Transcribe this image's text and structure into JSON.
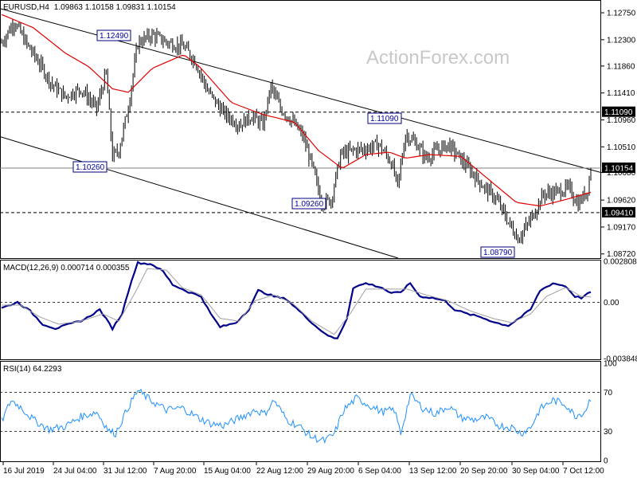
{
  "header": {
    "symbol": "EURUSD,H4",
    "ohlc": "1.09863 1.10158 1.09831 1.10154",
    "macd": "MACD(12,26,9) 0.000714 0.000355",
    "rsi": "RSI(14) 64.2293"
  },
  "watermark": "ActionForex.com",
  "colors": {
    "bars": "#000000",
    "ma": "#e00000",
    "macd_line": "#00008b",
    "signal": "#a0a0a0",
    "rsi": "#1e90ff",
    "channel": "#000000",
    "level_box_text": "#0000a0",
    "current_price_box": "#000000",
    "grid": "#ffffff"
  },
  "chart_data": [
    {
      "type": "candlestick",
      "title": "EURUSD,H4",
      "ylim": [
        1.0865,
        1.1295
      ],
      "y_ticks": [
        "1.12750",
        "1.12300",
        "1.11860",
        "1.11410",
        "1.10960",
        "1.10510",
        "1.10080",
        "1.09620",
        "1.09170",
        "1.08720"
      ],
      "y_tick_values": [
        1.1275,
        1.123,
        1.1186,
        1.1141,
        1.1096,
        1.1051,
        1.1008,
        1.0962,
        1.0917,
        1.0872
      ],
      "x_ticks": [
        "16 Jul 2019",
        "24 Jul 04:00",
        "31 Jul 12:00",
        "7 Aug 20:00",
        "15 Aug 04:00",
        "22 Aug 12:00",
        "29 Aug 20:00",
        "6 Sep 04:00",
        "13 Sep 12:00",
        "20 Sep 20:00",
        "30 Sep 04:00",
        "7 Oct 12:00"
      ],
      "levels": [
        {
          "value": 1.1109,
          "label": "1.11090",
          "style": "dashed"
        },
        {
          "value": 1.0941,
          "label": "1.09410",
          "style": "dashed"
        },
        {
          "value": 1.10154,
          "label": "1.10154",
          "style": "solid"
        }
      ],
      "annotations": [
        {
          "label": "1.12490",
          "value": 1.1249
        },
        {
          "label": "1.10260",
          "value": 1.1026
        },
        {
          "label": "1.09260",
          "value": 1.0926
        },
        {
          "label": "1.11090",
          "value": 1.1109
        },
        {
          "label": "1.08790",
          "value": 1.0879
        }
      ],
      "close_anchors": [
        [
          0,
          1.1225
        ],
        [
          8,
          1.126
        ],
        [
          16,
          1.1222
        ],
        [
          24,
          1.119
        ],
        [
          32,
          1.1155
        ],
        [
          40,
          1.1135
        ],
        [
          50,
          1.1148
        ],
        [
          60,
          1.1115
        ],
        [
          66,
          1.1175
        ],
        [
          70,
          1.1035
        ],
        [
          74,
          1.1045
        ],
        [
          80,
          1.1118
        ],
        [
          86,
          1.1225
        ],
        [
          95,
          1.1238
        ],
        [
          105,
          1.1225
        ],
        [
          115,
          1.1218
        ],
        [
          122,
          1.1195
        ],
        [
          130,
          1.1145
        ],
        [
          140,
          1.1108
        ],
        [
          150,
          1.1088
        ],
        [
          158,
          1.1102
        ],
        [
          165,
          1.1088
        ],
        [
          170,
          1.1152
        ],
        [
          176,
          1.1115
        ],
        [
          183,
          1.1095
        ],
        [
          190,
          1.107
        ],
        [
          196,
          1.102
        ],
        [
          202,
          1.0958
        ],
        [
          208,
          1.0962
        ],
        [
          214,
          1.1038
        ],
        [
          222,
          1.1045
        ],
        [
          230,
          1.1048
        ],
        [
          238,
          1.1055
        ],
        [
          246,
          1.1025
        ],
        [
          250,
          1.0985
        ],
        [
          255,
          1.1072
        ],
        [
          262,
          1.1055
        ],
        [
          268,
          1.1032
        ],
        [
          275,
          1.1045
        ],
        [
          282,
          1.1055
        ],
        [
          290,
          1.103
        ],
        [
          298,
          1.1005
        ],
        [
          305,
          1.0982
        ],
        [
          312,
          1.0965
        ],
        [
          320,
          1.0925
        ],
        [
          326,
          1.0898
        ],
        [
          332,
          1.092
        ],
        [
          336,
          1.094
        ],
        [
          342,
          1.0972
        ],
        [
          350,
          1.0975
        ],
        [
          358,
          1.0982
        ],
        [
          364,
          1.0955
        ],
        [
          370,
          1.098
        ],
        [
          372,
          1.10154
        ]
      ],
      "ma_anchors": [
        [
          0,
          1.1272
        ],
        [
          20,
          1.125
        ],
        [
          40,
          1.1208
        ],
        [
          55,
          1.1185
        ],
        [
          70,
          1.1148
        ],
        [
          80,
          1.1142
        ],
        [
          95,
          1.1182
        ],
        [
          115,
          1.1205
        ],
        [
          125,
          1.1185
        ],
        [
          145,
          1.1125
        ],
        [
          165,
          1.1105
        ],
        [
          185,
          1.1092
        ],
        [
          200,
          1.1045
        ],
        [
          215,
          1.1015
        ],
        [
          230,
          1.1038
        ],
        [
          245,
          1.1042
        ],
        [
          255,
          1.1032
        ],
        [
          270,
          1.1038
        ],
        [
          290,
          1.1035
        ],
        [
          305,
          1.1002
        ],
        [
          325,
          1.0958
        ],
        [
          340,
          1.0952
        ],
        [
          355,
          1.0962
        ],
        [
          372,
          1.0975
        ]
      ]
    },
    {
      "type": "line",
      "title": "MACD(12,26,9)",
      "ylim": [
        -0.00385,
        0.0028
      ],
      "y_ticks": [
        "0.002808",
        "0.00",
        "-0.003848"
      ],
      "y_tick_values": [
        0.002808,
        0.0,
        -0.003848
      ],
      "series": [
        {
          "name": "MACD",
          "anchors": [
            [
              0,
              -0.0004
            ],
            [
              10,
              0.0
            ],
            [
              18,
              -0.0006
            ],
            [
              26,
              -0.0015
            ],
            [
              34,
              -0.0018
            ],
            [
              40,
              -0.0016
            ],
            [
              52,
              -0.0012
            ],
            [
              62,
              -0.0005
            ],
            [
              70,
              -0.0018
            ],
            [
              76,
              -0.0008
            ],
            [
              82,
              0.0015
            ],
            [
              86,
              0.0027
            ],
            [
              95,
              0.0026
            ],
            [
              102,
              0.0021
            ],
            [
              108,
              0.0012
            ],
            [
              118,
              0.0007
            ],
            [
              126,
              0.0004
            ],
            [
              132,
              -0.0008
            ],
            [
              138,
              -0.0017
            ],
            [
              148,
              -0.0014
            ],
            [
              156,
              -0.0005
            ],
            [
              162,
              0.0008
            ],
            [
              172,
              0.0004
            ],
            [
              180,
              0.0002
            ],
            [
              190,
              -0.0008
            ],
            [
              200,
              -0.0018
            ],
            [
              208,
              -0.0024
            ],
            [
              212,
              -0.0025
            ],
            [
              218,
              -0.0011
            ],
            [
              222,
              0.001
            ],
            [
              230,
              0.0013
            ],
            [
              240,
              0.001
            ],
            [
              246,
              0.0006
            ],
            [
              252,
              0.0007
            ],
            [
              258,
              0.0013
            ],
            [
              264,
              0.0004
            ],
            [
              272,
              0.0003
            ],
            [
              280,
              0.0001
            ],
            [
              286,
              -0.0005
            ],
            [
              294,
              -0.0008
            ],
            [
              302,
              -0.001
            ],
            [
              312,
              -0.0014
            ],
            [
              320,
              -0.0016
            ],
            [
              328,
              -0.001
            ],
            [
              334,
              -0.0005
            ],
            [
              340,
              0.0008
            ],
            [
              348,
              0.0013
            ],
            [
              356,
              0.0011
            ],
            [
              362,
              0.0004
            ],
            [
              366,
              0.0003
            ],
            [
              372,
              0.0007
            ]
          ]
        },
        {
          "name": "Signal",
          "anchors": [
            [
              0,
              -0.0002
            ],
            [
              12,
              -0.0002
            ],
            [
              24,
              -0.001
            ],
            [
              36,
              -0.0015
            ],
            [
              50,
              -0.0013
            ],
            [
              64,
              -0.0008
            ],
            [
              74,
              -0.0013
            ],
            [
              84,
              0.0006
            ],
            [
              92,
              0.0023
            ],
            [
              104,
              0.0022
            ],
            [
              114,
              0.001
            ],
            [
              126,
              0.0005
            ],
            [
              138,
              -0.0011
            ],
            [
              150,
              -0.0013
            ],
            [
              160,
              0.0001
            ],
            [
              172,
              0.0005
            ],
            [
              184,
              -0.0001
            ],
            [
              196,
              -0.0013
            ],
            [
              210,
              -0.0022
            ],
            [
              220,
              -0.0008
            ],
            [
              230,
              0.0009
            ],
            [
              244,
              0.0009
            ],
            [
              256,
              0.0009
            ],
            [
              268,
              0.0005
            ],
            [
              282,
              0.0001
            ],
            [
              296,
              -0.0006
            ],
            [
              310,
              -0.0011
            ],
            [
              322,
              -0.0014
            ],
            [
              334,
              -0.0008
            ],
            [
              344,
              0.0004
            ],
            [
              356,
              0.001
            ],
            [
              366,
              0.0004
            ],
            [
              372,
              0.00036
            ]
          ]
        }
      ]
    },
    {
      "type": "line",
      "title": "RSI(14)",
      "ylim": [
        0,
        100
      ],
      "y_ticks": [
        "100",
        "70",
        "30",
        "0"
      ],
      "y_tick_values": [
        100,
        70,
        30,
        0
      ],
      "levels": [
        70,
        30
      ],
      "series": [
        {
          "name": "RSI",
          "anchors": [
            [
              0,
              40
            ],
            [
              6,
              62
            ],
            [
              12,
              55
            ],
            [
              20,
              42
            ],
            [
              30,
              32
            ],
            [
              40,
              35
            ],
            [
              50,
              45
            ],
            [
              60,
              50
            ],
            [
              68,
              30
            ],
            [
              72,
              28
            ],
            [
              80,
              55
            ],
            [
              86,
              72
            ],
            [
              94,
              62
            ],
            [
              104,
              52
            ],
            [
              114,
              54
            ],
            [
              124,
              44
            ],
            [
              132,
              38
            ],
            [
              140,
              36
            ],
            [
              152,
              45
            ],
            [
              160,
              52
            ],
            [
              166,
              48
            ],
            [
              172,
              62
            ],
            [
              180,
              42
            ],
            [
              188,
              35
            ],
            [
              196,
              24
            ],
            [
              204,
              20
            ],
            [
              210,
              27
            ],
            [
              216,
              52
            ],
            [
              224,
              64
            ],
            [
              232,
              57
            ],
            [
              240,
              50
            ],
            [
              248,
              52
            ],
            [
              252,
              28
            ],
            [
              258,
              67
            ],
            [
              266,
              54
            ],
            [
              274,
              48
            ],
            [
              282,
              56
            ],
            [
              290,
              44
            ],
            [
              298,
              42
            ],
            [
              306,
              44
            ],
            [
              314,
              36
            ],
            [
              322,
              34
            ],
            [
              328,
              28
            ],
            [
              334,
              34
            ],
            [
              340,
              53
            ],
            [
              348,
              62
            ],
            [
              356,
              58
            ],
            [
              362,
              46
            ],
            [
              368,
              50
            ],
            [
              372,
              64.2293
            ]
          ]
        }
      ]
    }
  ]
}
